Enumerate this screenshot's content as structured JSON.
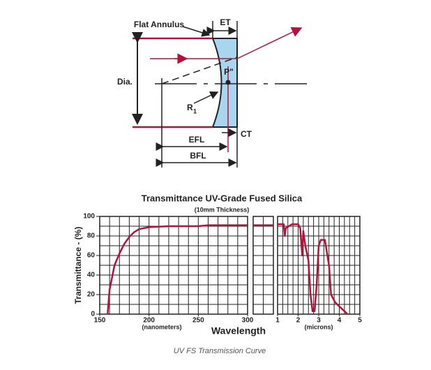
{
  "diagram": {
    "flat_annulus": "Flat Annulus",
    "et": "ET",
    "dia": "Dia.",
    "p": "P\"",
    "r": "R",
    "r_sub": "1",
    "ct": "CT",
    "efl": "EFL",
    "bfl": "BFL"
  },
  "chart_data": {
    "type": "line",
    "title": "Transmittance UV-Grade Fused Silica",
    "subtitle": "(10mm Thickness)",
    "ylabel": "Transmittance - (%)",
    "xlabel": "Wavelength",
    "color": "#b5123a",
    "ylim": [
      0,
      100
    ],
    "yticks": [
      0,
      20,
      40,
      60,
      80,
      100
    ],
    "panels": [
      {
        "unit_label": "(nanometers)",
        "xlim": [
          150,
          300
        ],
        "xticks": [
          150,
          200,
          250,
          300
        ],
        "x": [
          158,
          160,
          165,
          170,
          175,
          180,
          185,
          190,
          200,
          220,
          250,
          260,
          300
        ],
        "values": [
          0,
          25,
          50,
          62,
          72,
          79,
          84,
          87,
          89,
          90,
          90,
          91,
          91
        ]
      },
      {
        "values": [
          91,
          91
        ]
      },
      {
        "unit_label": "(microns)",
        "xlim": [
          1,
          5
        ],
        "xticks": [
          1,
          2,
          3,
          4,
          5
        ],
        "x": [
          1.0,
          1.3,
          1.35,
          1.4,
          1.7,
          2.0,
          2.1,
          2.2,
          2.25,
          2.35,
          2.5,
          2.6,
          2.7,
          2.8,
          2.9,
          3.0,
          3.1,
          3.3,
          3.5,
          3.6,
          3.8,
          4.0,
          4.3,
          4.4
        ],
        "values": [
          92,
          92,
          80,
          88,
          92,
          92,
          88,
          60,
          85,
          70,
          55,
          20,
          3,
          3,
          30,
          70,
          76,
          76,
          50,
          20,
          12,
          8,
          2,
          0
        ]
      }
    ]
  },
  "caption": "UV FS Transmission Curve"
}
